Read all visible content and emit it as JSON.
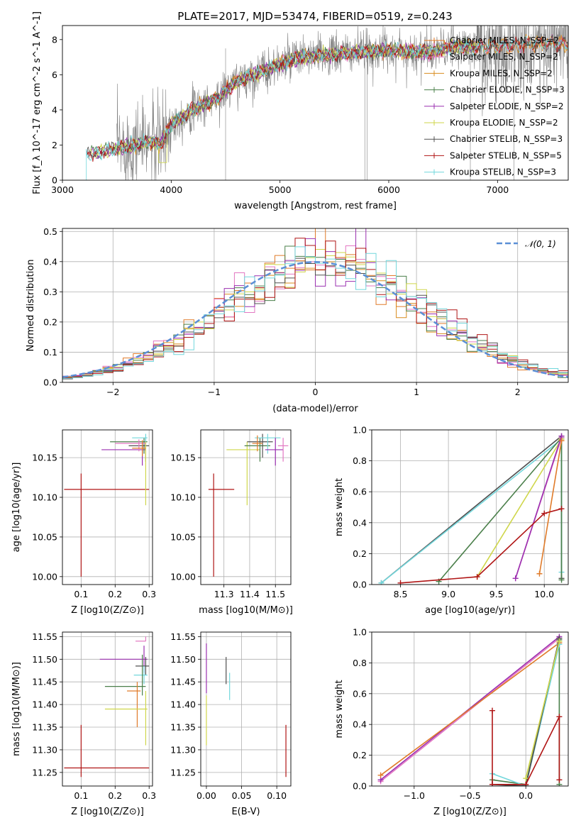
{
  "figure": {
    "title": "PLATE=2017, MJD=53474, FIBERID=0519, z=0.243"
  },
  "colors": {
    "data": "#808080",
    "models": [
      "#e07b2a",
      "#e377c2",
      "#d98c1e",
      "#4a7f4a",
      "#9b30b0",
      "#cfd64a",
      "#505050",
      "#b01515",
      "#72d7dc"
    ]
  },
  "chart_data": [
    {
      "id": "spectrum",
      "type": "line",
      "xlabel": "wavelength [Angstrom, rest frame]",
      "ylabel": "Flux [f_λ 10^-17 erg cm^-2 s^-1 A^-1]",
      "xlim": [
        3000,
        7650
      ],
      "ylim": [
        0,
        8.8
      ],
      "xticks": [
        "3000",
        "4000",
        "5000",
        "6000",
        "7000"
      ],
      "yticks": [
        "0",
        "2",
        "4",
        "6",
        "8"
      ],
      "legend_position": "top-right",
      "series": [
        {
          "name": "Chabrier MILES, N_SSP=2",
          "color": "#e07b2a"
        },
        {
          "name": "Salpeter MILES, N_SSP=2",
          "color": "#e377c2"
        },
        {
          "name": "Kroupa MILES, N_SSP=2",
          "color": "#d98c1e"
        },
        {
          "name": "Chabrier ELODIE, N_SSP=3",
          "color": "#4a7f4a"
        },
        {
          "name": "Salpeter ELODIE, N_SSP=2",
          "color": "#9b30b0"
        },
        {
          "name": "Kroupa ELODIE, N_SSP=2",
          "color": "#cfd64a"
        },
        {
          "name": "Chabrier STELIB, N_SSP=3",
          "color": "#505050"
        },
        {
          "name": "Salpeter STELIB, N_SSP=5",
          "color": "#b01515"
        },
        {
          "name": "Kroupa STELIB, N_SSP=3",
          "color": "#72d7dc"
        }
      ],
      "model_trend": {
        "x": [
          3220,
          3400,
          3600,
          3800,
          3900,
          4000,
          4200,
          4400,
          4600,
          4800,
          5000,
          5200,
          5400,
          5600,
          5800,
          6000,
          6200,
          6400,
          6600,
          6800,
          7000,
          7200,
          7400,
          7650
        ],
        "y": [
          1.4,
          1.7,
          1.9,
          2.2,
          2.0,
          3.2,
          4.0,
          4.6,
          5.6,
          6.1,
          6.6,
          7.0,
          7.1,
          7.2,
          7.3,
          7.4,
          7.3,
          7.3,
          7.6,
          7.6,
          7.6,
          7.7,
          7.8,
          7.7
        ]
      }
    },
    {
      "id": "residuals",
      "type": "histogram",
      "xlabel": "(data-model)/error",
      "ylabel": "Normed distribution",
      "xlim": [
        -2.5,
        2.5
      ],
      "ylim": [
        0,
        0.51
      ],
      "xticks": [
        "−2",
        "−1",
        "0",
        "1",
        "2"
      ],
      "yticks": [
        "0.0",
        "0.1",
        "0.2",
        "0.3",
        "0.4",
        "0.5"
      ],
      "bin_width": 0.1,
      "grid": true,
      "legend_position": "top-right",
      "reference": {
        "name": "𝒩(0, 1)",
        "color": "#5b8fd6"
      }
    },
    {
      "id": "age-vs-Z",
      "type": "errorbar",
      "xlabel": "Z [log10(Z/Z⊙)]",
      "ylabel": "age [log10(age/yr)]",
      "xlim": [
        0.045,
        0.31
      ],
      "ylim": [
        9.99,
        10.185
      ],
      "xticks": [
        "0.1",
        "0.2",
        "0.3"
      ],
      "yticks": [
        "10.00",
        "10.05",
        "10.10",
        "10.15"
      ],
      "grid": true,
      "points": [
        {
          "x": 0.1,
          "y": 10.11,
          "xerr": [
            0.05,
            0.2
          ],
          "yerr": [
            0.11,
            0.02
          ],
          "color": "#b01515"
        },
        {
          "x": 0.28,
          "y": 10.16,
          "xerr": [
            0.12,
            0.01
          ],
          "yerr": [
            0.02,
            0.01
          ],
          "color": "#9b30b0"
        },
        {
          "x": 0.285,
          "y": 10.17,
          "xerr": [
            0.1,
            0.01
          ],
          "yerr": [
            0.015,
            0.005
          ],
          "color": "#4a7f4a"
        },
        {
          "x": 0.29,
          "y": 10.165,
          "xerr": [
            0.05,
            0.01
          ],
          "yerr": [
            0.02,
            0.01
          ],
          "color": "#505050"
        },
        {
          "x": 0.29,
          "y": 10.175,
          "xerr": [
            0.04,
            0.005
          ],
          "yerr": [
            0.005,
            0.005
          ],
          "color": "#72d7dc"
        },
        {
          "x": 0.29,
          "y": 10.13,
          "xerr": [
            0.0,
            0.0
          ],
          "yerr": [
            0.04,
            0.04
          ],
          "color": "#cfd64a"
        },
        {
          "x": 0.27,
          "y": 10.168,
          "xerr": [
            0.07,
            0.02
          ],
          "yerr": [
            0.01,
            0.005
          ],
          "color": "#e377c2"
        },
        {
          "x": 0.28,
          "y": 10.162,
          "xerr": [
            0.03,
            0.01
          ],
          "yerr": [
            0.01,
            0.01
          ],
          "color": "#e07b2a"
        }
      ]
    },
    {
      "id": "age-vs-mass",
      "type": "errorbar",
      "xlabel": "mass [log10(M/M⊙)]",
      "ylabel": "",
      "xlim": [
        11.21,
        11.56
      ],
      "ylim": [
        9.99,
        10.185
      ],
      "xticks": [
        "11.3",
        "11.4",
        "11.5"
      ],
      "yticks": [
        "10.00",
        "10.05",
        "10.10",
        "10.15"
      ],
      "grid": true,
      "points": [
        {
          "x": 11.26,
          "y": 10.11,
          "xerr": [
            0.02,
            0.08
          ],
          "yerr": [
            0.11,
            0.02
          ],
          "color": "#b01515"
        },
        {
          "x": 11.39,
          "y": 10.16,
          "xerr": [
            0.08,
            0.05
          ],
          "yerr": [
            0.07,
            0.01
          ],
          "color": "#cfd64a"
        },
        {
          "x": 11.44,
          "y": 10.165,
          "xerr": [
            0.06,
            0.04
          ],
          "yerr": [
            0.02,
            0.01
          ],
          "color": "#4a7f4a"
        },
        {
          "x": 11.45,
          "y": 10.17,
          "xerr": [
            0.06,
            0.04
          ],
          "yerr": [
            0.02,
            0.01
          ],
          "color": "#505050"
        },
        {
          "x": 11.47,
          "y": 10.175,
          "xerr": [
            0.05,
            0.05
          ],
          "yerr": [
            0.02,
            0.005
          ],
          "color": "#72d7dc"
        },
        {
          "x": 11.5,
          "y": 10.16,
          "xerr": [
            0.04,
            0.03
          ],
          "yerr": [
            0.02,
            0.015
          ],
          "color": "#9b30b0"
        },
        {
          "x": 11.53,
          "y": 10.165,
          "xerr": [
            0.02,
            0.02
          ],
          "yerr": [
            0.02,
            0.01
          ],
          "color": "#e377c2"
        },
        {
          "x": 11.43,
          "y": 10.168,
          "xerr": [
            0.02,
            0.02
          ],
          "yerr": [
            0.01,
            0.01
          ],
          "color": "#e07b2a"
        }
      ]
    },
    {
      "id": "weight-vs-age",
      "type": "line",
      "xlabel": "age [log10(age/yr)]",
      "ylabel": "mass weight",
      "xlim": [
        8.2,
        10.25
      ],
      "ylim": [
        0,
        1.0
      ],
      "xticks": [
        "8.5",
        "9.0",
        "9.5",
        "10.0"
      ],
      "yticks": [
        "0.0",
        "0.2",
        "0.4",
        "0.6",
        "0.8",
        "1.0"
      ],
      "grid": true,
      "series": [
        {
          "color": "#505050",
          "x": [
            8.3,
            10.18,
            10.18
          ],
          "y": [
            0.01,
            0.96,
            0.04
          ]
        },
        {
          "color": "#72d7dc",
          "x": [
            8.3,
            10.18,
            10.18
          ],
          "y": [
            0.01,
            0.94,
            0.08
          ]
        },
        {
          "color": "#4a7f4a",
          "x": [
            8.9,
            10.18,
            10.18
          ],
          "y": [
            0.02,
            0.95,
            0.03
          ]
        },
        {
          "color": "#cfd64a",
          "x": [
            9.3,
            10.18
          ],
          "y": [
            0.05,
            0.94
          ]
        },
        {
          "color": "#e377c2",
          "x": [
            9.7,
            10.18
          ],
          "y": [
            0.04,
            0.95
          ]
        },
        {
          "color": "#9b30b0",
          "x": [
            9.7,
            10.18
          ],
          "y": [
            0.04,
            0.96
          ]
        },
        {
          "color": "#e07b2a",
          "x": [
            9.95,
            10.18
          ],
          "y": [
            0.07,
            0.93
          ]
        },
        {
          "color": "#b01515",
          "x": [
            8.5,
            9.3,
            10.0,
            10.18
          ],
          "y": [
            0.01,
            0.05,
            0.46,
            0.49
          ]
        }
      ]
    },
    {
      "id": "mass-vs-Z",
      "type": "errorbar",
      "xlabel": "Z [log10(Z/Z⊙)]",
      "ylabel": "mass [log10(M/M⊙)]",
      "xlim": [
        0.045,
        0.31
      ],
      "ylim": [
        11.22,
        11.56
      ],
      "xticks": [
        "0.1",
        "0.2",
        "0.3"
      ],
      "yticks": [
        "11.25",
        "11.30",
        "11.35",
        "11.40",
        "11.45",
        "11.50",
        "11.55"
      ],
      "grid": true,
      "points": [
        {
          "x": 0.1,
          "y": 11.26,
          "xerr": [
            0.05,
            0.2
          ],
          "yerr": [
            0.02,
            0.095
          ],
          "color": "#b01515"
        },
        {
          "x": 0.29,
          "y": 11.54,
          "xerr": [
            0.03,
            0.0
          ],
          "yerr": [
            0.0,
            0.01
          ],
          "color": "#e377c2"
        },
        {
          "x": 0.285,
          "y": 11.5,
          "xerr": [
            0.13,
            0.01
          ],
          "yerr": [
            0.03,
            0.03
          ],
          "color": "#9b30b0"
        },
        {
          "x": 0.29,
          "y": 11.485,
          "xerr": [
            0.03,
            0.01
          ],
          "yerr": [
            0.02,
            0.02
          ],
          "color": "#505050"
        },
        {
          "x": 0.285,
          "y": 11.465,
          "xerr": [
            0.03,
            0.01
          ],
          "yerr": [
            0.02,
            0.02
          ],
          "color": "#72d7dc"
        },
        {
          "x": 0.28,
          "y": 11.44,
          "xerr": [
            0.11,
            0.01
          ],
          "yerr": [
            0.02,
            0.07
          ],
          "color": "#4a7f4a"
        },
        {
          "x": 0.265,
          "y": 11.43,
          "xerr": [
            0.03,
            0.01
          ],
          "yerr": [
            0.08,
            0.02
          ],
          "color": "#e07b2a"
        },
        {
          "x": 0.29,
          "y": 11.39,
          "xerr": [
            0.12,
            0.005
          ],
          "yerr": [
            0.08,
            0.04
          ],
          "color": "#cfd64a"
        }
      ]
    },
    {
      "id": "mass-vs-EBV",
      "type": "errorbar",
      "xlabel": "E(B-V)",
      "ylabel": "",
      "xlim": [
        -0.008,
        0.12
      ],
      "ylim": [
        11.22,
        11.56
      ],
      "xticks": [
        "0.00",
        "0.05",
        "0.10"
      ],
      "yticks": [
        "11.25",
        "11.30",
        "11.35",
        "11.40",
        "11.45",
        "11.50",
        "11.55"
      ],
      "grid": true,
      "points": [
        {
          "x": 0.0,
          "y": 11.48,
          "xerr": [
            0,
            0
          ],
          "yerr": [
            0.055,
            0.055
          ],
          "color": "#9b30b0"
        },
        {
          "x": 0.0,
          "y": 11.37,
          "xerr": [
            0,
            0
          ],
          "yerr": [
            0.06,
            0.05
          ],
          "color": "#cfd64a"
        },
        {
          "x": 0.028,
          "y": 11.475,
          "xerr": [
            0,
            0
          ],
          "yerr": [
            0.03,
            0.03
          ],
          "color": "#505050"
        },
        {
          "x": 0.033,
          "y": 11.44,
          "xerr": [
            0,
            0
          ],
          "yerr": [
            0.03,
            0.03
          ],
          "color": "#72d7dc"
        },
        {
          "x": 0.113,
          "y": 11.3,
          "xerr": [
            0,
            0
          ],
          "yerr": [
            0.06,
            0.055
          ],
          "color": "#b01515"
        }
      ]
    },
    {
      "id": "weight-vs-Z",
      "type": "line",
      "xlabel": "Z [log10(Z/Z⊙)]",
      "ylabel": "mass weight",
      "xlim": [
        -1.38,
        0.38
      ],
      "ylim": [
        0,
        1.0
      ],
      "xticks": [
        "−1.0",
        "−0.5",
        "0.0"
      ],
      "yticks": [
        "0.0",
        "0.2",
        "0.4",
        "0.6",
        "0.8",
        "1.0"
      ],
      "grid": true,
      "series": [
        {
          "color": "#e377c2",
          "x": [
            -1.3,
            0.3
          ],
          "y": [
            0.03,
            0.96
          ]
        },
        {
          "color": "#9b30b0",
          "x": [
            -1.3,
            0.3
          ],
          "y": [
            0.04,
            0.97
          ]
        },
        {
          "color": "#e07b2a",
          "x": [
            -1.3,
            0.3
          ],
          "y": [
            0.07,
            0.93
          ]
        },
        {
          "color": "#4a7f4a",
          "x": [
            -0.3,
            0.0,
            0.3,
            0.3
          ],
          "y": [
            0.04,
            0.01,
            0.95,
            0.01
          ]
        },
        {
          "color": "#72d7dc",
          "x": [
            -0.3,
            0.0,
            0.3
          ],
          "y": [
            0.08,
            0.0,
            0.92
          ]
        },
        {
          "color": "#505050",
          "x": [
            -0.3,
            0.0,
            0.3
          ],
          "y": [
            0.01,
            0.0,
            0.96
          ]
        },
        {
          "color": "#cfd64a",
          "x": [
            0.0,
            0.3
          ],
          "y": [
            0.05,
            0.94
          ]
        },
        {
          "color": "#b01515",
          "x": [
            -0.3,
            -0.3,
            0.0,
            0.3,
            0.3
          ],
          "y": [
            0.49,
            0.01,
            0.01,
            0.45,
            0.04
          ]
        }
      ]
    }
  ]
}
